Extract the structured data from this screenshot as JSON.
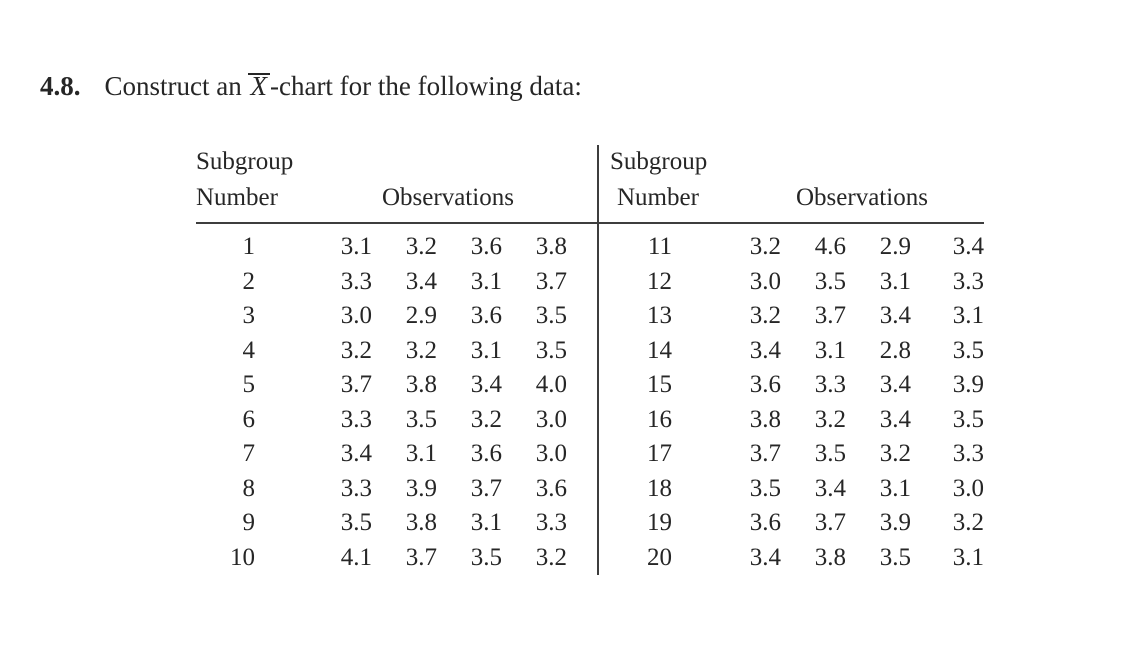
{
  "problem": {
    "number": "4.8.",
    "title_before": "Construct an ",
    "title_xbar": "X",
    "title_after": "-chart for the following data:"
  },
  "table": {
    "header": {
      "subgroup_line1": "Subgroup",
      "subgroup_line2": "Number",
      "observations": "Observations"
    },
    "left_rows": [
      {
        "subgroup": "1",
        "observations": [
          "3.1",
          "3.2",
          "3.6",
          "3.8"
        ]
      },
      {
        "subgroup": "2",
        "observations": [
          "3.3",
          "3.4",
          "3.1",
          "3.7"
        ]
      },
      {
        "subgroup": "3",
        "observations": [
          "3.0",
          "2.9",
          "3.6",
          "3.5"
        ]
      },
      {
        "subgroup": "4",
        "observations": [
          "3.2",
          "3.2",
          "3.1",
          "3.5"
        ]
      },
      {
        "subgroup": "5",
        "observations": [
          "3.7",
          "3.8",
          "3.4",
          "4.0"
        ]
      },
      {
        "subgroup": "6",
        "observations": [
          "3.3",
          "3.5",
          "3.2",
          "3.0"
        ]
      },
      {
        "subgroup": "7",
        "observations": [
          "3.4",
          "3.1",
          "3.6",
          "3.0"
        ]
      },
      {
        "subgroup": "8",
        "observations": [
          "3.3",
          "3.9",
          "3.7",
          "3.6"
        ]
      },
      {
        "subgroup": "9",
        "observations": [
          "3.5",
          "3.8",
          "3.1",
          "3.3"
        ]
      },
      {
        "subgroup": "10",
        "observations": [
          "4.1",
          "3.7",
          "3.5",
          "3.2"
        ]
      }
    ],
    "right_rows": [
      {
        "subgroup": "11",
        "observations": [
          "3.2",
          "4.6",
          "2.9",
          "3.4"
        ]
      },
      {
        "subgroup": "12",
        "observations": [
          "3.0",
          "3.5",
          "3.1",
          "3.3"
        ]
      },
      {
        "subgroup": "13",
        "observations": [
          "3.2",
          "3.7",
          "3.4",
          "3.1"
        ]
      },
      {
        "subgroup": "14",
        "observations": [
          "3.4",
          "3.1",
          "2.8",
          "3.5"
        ]
      },
      {
        "subgroup": "15",
        "observations": [
          "3.6",
          "3.3",
          "3.4",
          "3.9"
        ]
      },
      {
        "subgroup": "16",
        "observations": [
          "3.8",
          "3.2",
          "3.4",
          "3.5"
        ]
      },
      {
        "subgroup": "17",
        "observations": [
          "3.7",
          "3.5",
          "3.2",
          "3.3"
        ]
      },
      {
        "subgroup": "18",
        "observations": [
          "3.5",
          "3.4",
          "3.1",
          "3.0"
        ]
      },
      {
        "subgroup": "19",
        "observations": [
          "3.6",
          "3.7",
          "3.9",
          "3.2"
        ]
      },
      {
        "subgroup": "20",
        "observations": [
          "3.4",
          "3.8",
          "3.5",
          "3.1"
        ]
      }
    ]
  }
}
